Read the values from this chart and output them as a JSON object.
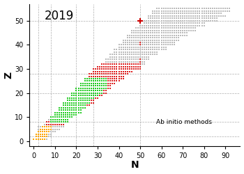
{
  "title": "2019",
  "xlabel": "N",
  "ylabel": "Z",
  "annotation": "Ab initio methods",
  "xlim": [
    -2,
    97
  ],
  "ylim": [
    -2,
    57
  ],
  "xticks": [
    0,
    10,
    20,
    30,
    40,
    50,
    60,
    70,
    80,
    90
  ],
  "yticks": [
    0,
    10,
    20,
    30,
    40,
    50
  ],
  "magic_N": [
    2,
    8,
    20,
    28,
    50
  ],
  "magic_Z": [
    2,
    8,
    20,
    28,
    50
  ],
  "col_orange": "#FFA500",
  "col_green": "#22CC22",
  "col_red": "#DD2222",
  "col_gray": "#BBBBBB",
  "col_special": "#CC0000",
  "background": "#ffffff",
  "marker_size": 1.9
}
